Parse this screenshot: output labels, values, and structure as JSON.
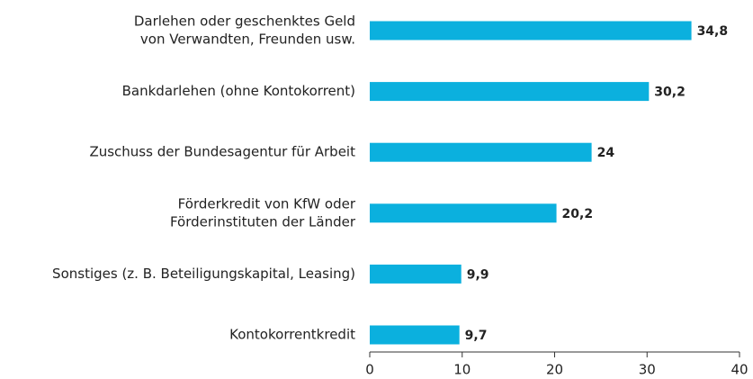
{
  "chart_data": {
    "type": "bar",
    "orientation": "horizontal",
    "categories": [
      [
        "Darlehen oder geschenktes Geld",
        "von Verwandten, Freunden usw."
      ],
      [
        "Bankdarlehen (ohne Kontokorrent)"
      ],
      [
        "Zuschuss der Bundesagentur für Arbeit"
      ],
      [
        "Förderkredit von KfW oder",
        "Förderinstituten der Länder"
      ],
      [
        "Sonstiges (z. B. Beteiligungskapital, Leasing)"
      ],
      [
        "Kontokorrentkredit"
      ]
    ],
    "values": [
      34.8,
      30.2,
      24,
      20.2,
      9.9,
      9.7
    ],
    "value_labels": [
      "34,8",
      "30,2",
      "24",
      "20,2",
      "9,9",
      "9,7"
    ],
    "color": "#0bb0de",
    "xlim": [
      0,
      40
    ],
    "xticks": [
      0,
      10,
      20,
      30,
      40
    ],
    "grid": false
  }
}
